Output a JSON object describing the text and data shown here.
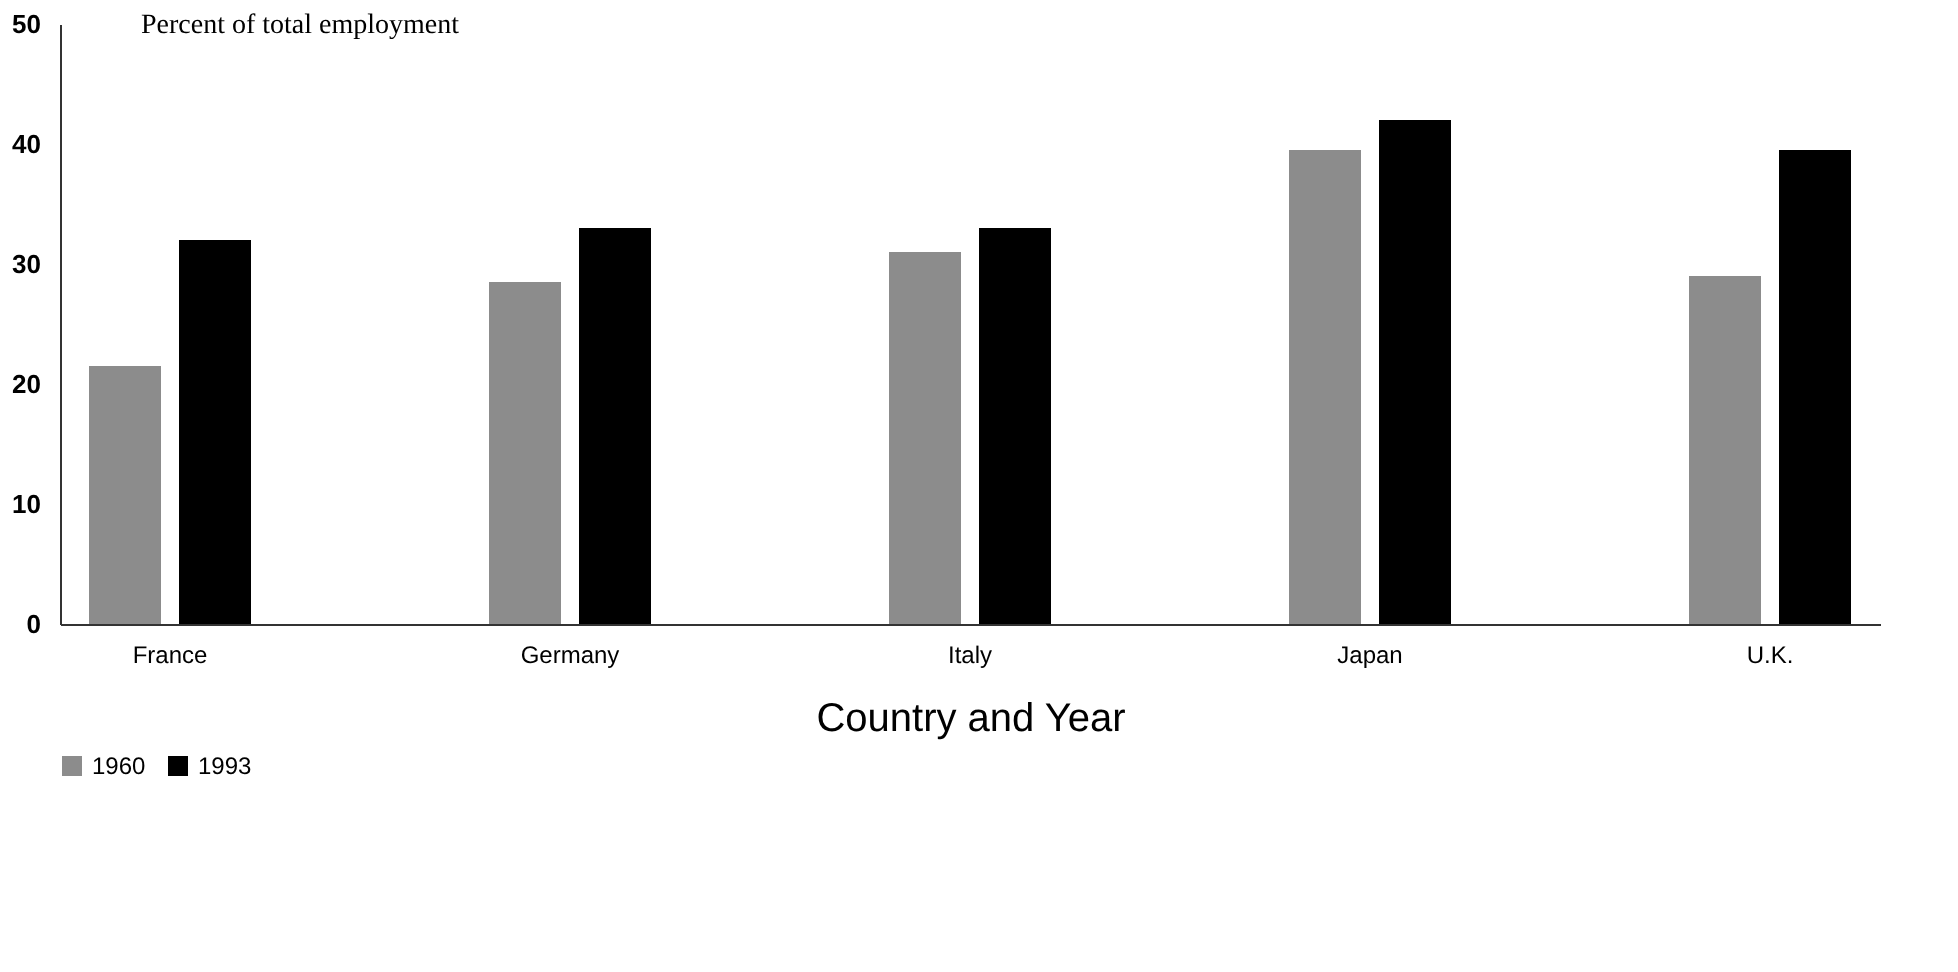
{
  "chart_data": {
    "type": "bar",
    "ylabel": "Percent of total employment",
    "xlabel": "Country and Year",
    "categories": [
      "France",
      "Germany",
      "Italy",
      "Japan",
      "U.K."
    ],
    "series": [
      {
        "name": "1960",
        "color": "#8c8c8c",
        "values": [
          21.5,
          28.5,
          31,
          39.5,
          29
        ]
      },
      {
        "name": "1993",
        "color": "#000000",
        "values": [
          32,
          33,
          33,
          42,
          39.5
        ]
      }
    ],
    "ylim": [
      0,
      50
    ],
    "yticks": [
      0,
      10,
      20,
      30,
      40,
      50
    ],
    "grid": false,
    "legend": "bottom"
  }
}
